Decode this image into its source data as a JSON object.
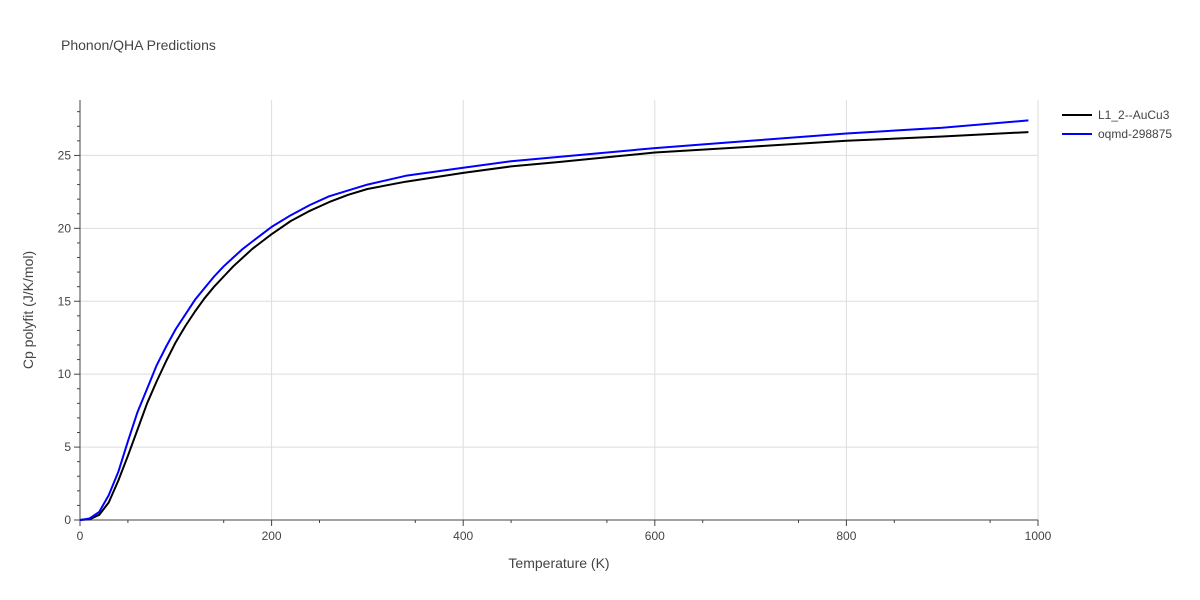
{
  "chart_data": {
    "type": "line",
    "title": "Phonon/QHA Predictions",
    "xlabel": "Temperature (K)",
    "ylabel": "Cp polyfit (J/K/mol)",
    "xlim": [
      0,
      1000
    ],
    "ylim": [
      0,
      28.8
    ],
    "xticks": [
      0,
      200,
      400,
      600,
      800,
      1000
    ],
    "yticks": [
      0,
      5,
      10,
      15,
      20,
      25
    ],
    "grid": true,
    "legend_position": "top-right",
    "series": [
      {
        "name": "L1_2--AuCu3",
        "color": "#000000",
        "x": [
          0,
          10,
          20,
          30,
          40,
          50,
          60,
          70,
          80,
          90,
          100,
          110,
          120,
          130,
          140,
          150,
          160,
          170,
          180,
          190,
          200,
          220,
          240,
          260,
          280,
          300,
          340,
          400,
          450,
          500,
          600,
          700,
          800,
          900,
          990
        ],
        "y": [
          0,
          0.05,
          0.35,
          1.2,
          2.7,
          4.4,
          6.2,
          8.0,
          9.5,
          10.9,
          12.2,
          13.3,
          14.3,
          15.2,
          16.0,
          16.7,
          17.4,
          18.0,
          18.6,
          19.1,
          19.6,
          20.5,
          21.2,
          21.8,
          22.3,
          22.7,
          23.2,
          23.8,
          24.25,
          24.55,
          25.2,
          25.6,
          26.0,
          26.3,
          26.6
        ]
      },
      {
        "name": "oqmd-298875",
        "color": "#0000ff",
        "x": [
          0,
          10,
          20,
          30,
          40,
          50,
          60,
          70,
          80,
          90,
          100,
          110,
          120,
          130,
          140,
          150,
          160,
          170,
          180,
          190,
          200,
          220,
          240,
          260,
          280,
          300,
          340,
          400,
          450,
          500,
          600,
          700,
          800,
          900,
          990
        ],
        "y": [
          0,
          0.1,
          0.55,
          1.7,
          3.3,
          5.4,
          7.4,
          9.0,
          10.6,
          11.9,
          13.1,
          14.1,
          15.1,
          15.9,
          16.7,
          17.4,
          18.0,
          18.6,
          19.1,
          19.6,
          20.1,
          20.9,
          21.6,
          22.2,
          22.6,
          23.0,
          23.6,
          24.15,
          24.6,
          24.9,
          25.5,
          26.0,
          26.5,
          26.9,
          27.4
        ]
      }
    ]
  }
}
